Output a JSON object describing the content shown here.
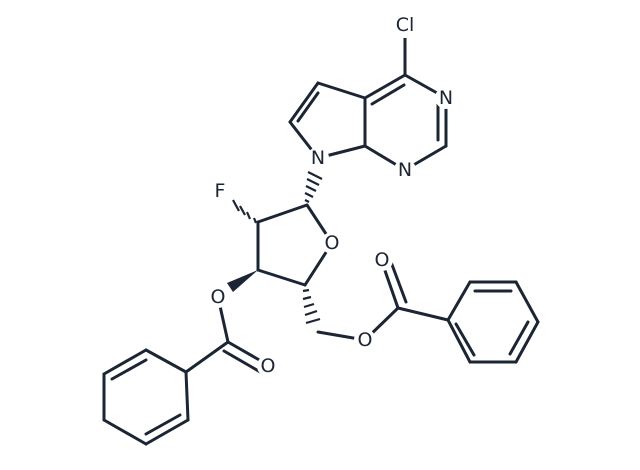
{
  "labels": [
    "Cl",
    "N",
    "N",
    "N",
    "F",
    "O",
    "O",
    "O",
    "O",
    "O"
  ]
}
